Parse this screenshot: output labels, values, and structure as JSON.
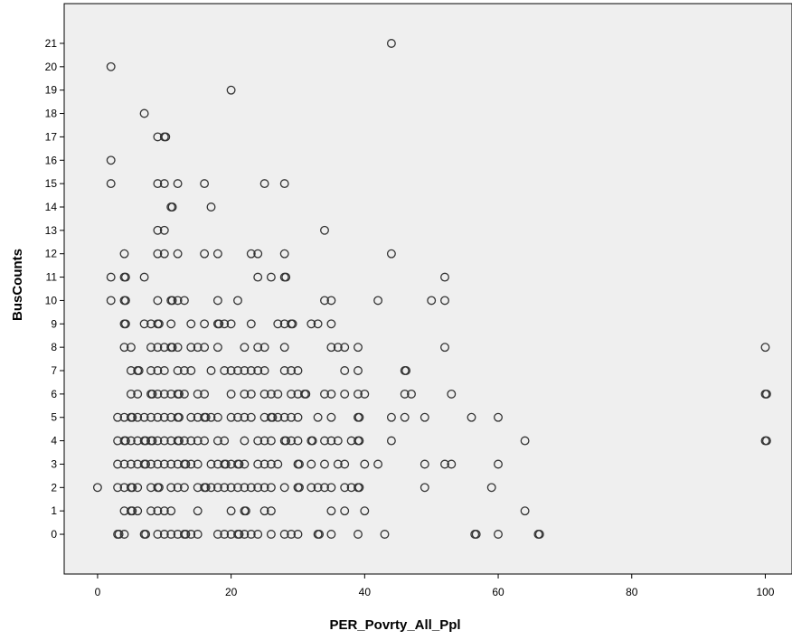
{
  "chart_data": {
    "type": "scatter",
    "xlabel": "PER_Povrty_All_Ppl",
    "ylabel": "BusCounts",
    "xlim": [
      -5,
      104
    ],
    "ylim": [
      -1.7,
      22.7
    ],
    "x_ticks": [
      0,
      20,
      40,
      60,
      80,
      100
    ],
    "y_ticks": [
      0,
      1,
      2,
      3,
      4,
      5,
      6,
      7,
      8,
      9,
      10,
      11,
      12,
      13,
      14,
      15,
      16,
      17,
      18,
      19,
      20,
      21
    ],
    "grid": false,
    "legend": "none",
    "colors": {
      "plot_bg": "#efefef",
      "marker_stroke": "#333333",
      "axis": "#000000"
    },
    "points": [
      [
        44,
        21
      ],
      [
        2,
        20
      ],
      [
        20,
        19
      ],
      [
        7,
        18
      ],
      [
        9,
        17
      ],
      [
        10,
        17
      ],
      [
        10.2,
        17
      ],
      [
        2,
        16
      ],
      [
        2,
        15
      ],
      [
        9,
        15
      ],
      [
        10,
        15
      ],
      [
        12,
        15
      ],
      [
        16,
        15
      ],
      [
        25,
        15
      ],
      [
        28,
        15
      ],
      [
        11,
        14
      ],
      [
        11.2,
        14
      ],
      [
        17,
        14
      ],
      [
        9,
        13
      ],
      [
        10,
        13
      ],
      [
        34,
        13
      ],
      [
        4,
        12
      ],
      [
        9,
        12
      ],
      [
        10,
        12
      ],
      [
        12,
        12
      ],
      [
        16,
        12
      ],
      [
        18,
        12
      ],
      [
        23,
        12
      ],
      [
        24,
        12
      ],
      [
        28,
        12
      ],
      [
        44,
        12
      ],
      [
        2,
        11
      ],
      [
        4,
        11
      ],
      [
        4.2,
        11
      ],
      [
        7,
        11
      ],
      [
        24,
        11
      ],
      [
        26,
        11
      ],
      [
        28,
        11
      ],
      [
        28.2,
        11
      ],
      [
        52,
        11
      ],
      [
        2,
        10
      ],
      [
        4,
        10
      ],
      [
        4.2,
        10
      ],
      [
        9,
        10
      ],
      [
        11,
        10
      ],
      [
        11.2,
        10
      ],
      [
        12,
        10
      ],
      [
        13,
        10
      ],
      [
        18,
        10
      ],
      [
        21,
        10
      ],
      [
        34,
        10
      ],
      [
        35,
        10
      ],
      [
        42,
        10
      ],
      [
        50,
        10
      ],
      [
        52,
        10
      ],
      [
        4,
        9
      ],
      [
        4.2,
        9
      ],
      [
        7,
        9
      ],
      [
        8,
        9
      ],
      [
        9,
        9
      ],
      [
        9.2,
        9
      ],
      [
        11,
        9
      ],
      [
        14,
        9
      ],
      [
        16,
        9
      ],
      [
        18,
        9
      ],
      [
        18.2,
        9
      ],
      [
        19,
        9
      ],
      [
        20,
        9
      ],
      [
        23,
        9
      ],
      [
        27,
        9
      ],
      [
        28,
        9
      ],
      [
        29,
        9
      ],
      [
        29.2,
        9
      ],
      [
        32,
        9
      ],
      [
        33,
        9
      ],
      [
        35,
        9
      ],
      [
        4,
        8
      ],
      [
        5,
        8
      ],
      [
        8,
        8
      ],
      [
        9,
        8
      ],
      [
        10,
        8
      ],
      [
        11,
        8
      ],
      [
        11.2,
        8
      ],
      [
        12,
        8
      ],
      [
        14,
        8
      ],
      [
        15,
        8
      ],
      [
        16,
        8
      ],
      [
        18,
        8
      ],
      [
        22,
        8
      ],
      [
        24,
        8
      ],
      [
        25,
        8
      ],
      [
        28,
        8
      ],
      [
        35,
        8
      ],
      [
        36,
        8
      ],
      [
        37,
        8
      ],
      [
        39,
        8
      ],
      [
        52,
        8
      ],
      [
        100,
        8
      ],
      [
        5,
        7
      ],
      [
        6,
        7
      ],
      [
        6.2,
        7
      ],
      [
        8,
        7
      ],
      [
        9,
        7
      ],
      [
        10,
        7
      ],
      [
        12,
        7
      ],
      [
        13,
        7
      ],
      [
        14,
        7
      ],
      [
        17,
        7
      ],
      [
        19,
        7
      ],
      [
        20,
        7
      ],
      [
        21,
        7
      ],
      [
        22,
        7
      ],
      [
        23,
        7
      ],
      [
        24,
        7
      ],
      [
        25,
        7
      ],
      [
        28,
        7
      ],
      [
        29,
        7
      ],
      [
        30,
        7
      ],
      [
        37,
        7
      ],
      [
        39,
        7
      ],
      [
        46,
        7
      ],
      [
        46.2,
        7
      ],
      [
        5,
        6
      ],
      [
        6,
        6
      ],
      [
        8,
        6
      ],
      [
        8.2,
        6
      ],
      [
        9,
        6
      ],
      [
        10,
        6
      ],
      [
        11,
        6
      ],
      [
        12,
        6
      ],
      [
        12.2,
        6
      ],
      [
        13,
        6
      ],
      [
        15,
        6
      ],
      [
        16,
        6
      ],
      [
        20,
        6
      ],
      [
        22,
        6
      ],
      [
        23,
        6
      ],
      [
        25,
        6
      ],
      [
        26,
        6
      ],
      [
        27,
        6
      ],
      [
        29,
        6
      ],
      [
        30,
        6
      ],
      [
        31,
        6
      ],
      [
        31.2,
        6
      ],
      [
        34,
        6
      ],
      [
        35,
        6
      ],
      [
        37,
        6
      ],
      [
        39,
        6
      ],
      [
        40,
        6
      ],
      [
        46,
        6
      ],
      [
        47,
        6
      ],
      [
        53,
        6
      ],
      [
        100,
        6
      ],
      [
        100.2,
        6
      ],
      [
        3,
        5
      ],
      [
        4,
        5
      ],
      [
        5,
        5
      ],
      [
        5.2,
        5
      ],
      [
        6,
        5
      ],
      [
        7,
        5
      ],
      [
        8,
        5
      ],
      [
        9,
        5
      ],
      [
        10,
        5
      ],
      [
        11,
        5
      ],
      [
        12,
        5
      ],
      [
        12.2,
        5
      ],
      [
        14,
        5
      ],
      [
        15,
        5
      ],
      [
        16,
        5
      ],
      [
        16.2,
        5
      ],
      [
        17,
        5
      ],
      [
        18,
        5
      ],
      [
        20,
        5
      ],
      [
        21,
        5
      ],
      [
        22,
        5
      ],
      [
        23,
        5
      ],
      [
        25,
        5
      ],
      [
        26,
        5
      ],
      [
        26.2,
        5
      ],
      [
        27,
        5
      ],
      [
        28,
        5
      ],
      [
        29,
        5
      ],
      [
        30,
        5
      ],
      [
        33,
        5
      ],
      [
        35,
        5
      ],
      [
        39,
        5
      ],
      [
        39.2,
        5
      ],
      [
        44,
        5
      ],
      [
        46,
        5
      ],
      [
        49,
        5
      ],
      [
        56,
        5
      ],
      [
        60,
        5
      ],
      [
        3,
        4
      ],
      [
        4,
        4
      ],
      [
        4.2,
        4
      ],
      [
        5,
        4
      ],
      [
        6,
        4
      ],
      [
        7,
        4
      ],
      [
        7.2,
        4
      ],
      [
        8,
        4
      ],
      [
        8.2,
        4
      ],
      [
        9,
        4
      ],
      [
        10,
        4
      ],
      [
        11,
        4
      ],
      [
        12,
        4
      ],
      [
        12.2,
        4
      ],
      [
        13,
        4
      ],
      [
        14,
        4
      ],
      [
        15,
        4
      ],
      [
        16,
        4
      ],
      [
        18,
        4
      ],
      [
        19,
        4
      ],
      [
        22,
        4
      ],
      [
        24,
        4
      ],
      [
        25,
        4
      ],
      [
        26,
        4
      ],
      [
        28,
        4
      ],
      [
        28.2,
        4
      ],
      [
        29,
        4
      ],
      [
        30,
        4
      ],
      [
        32,
        4
      ],
      [
        32.2,
        4
      ],
      [
        34,
        4
      ],
      [
        35,
        4
      ],
      [
        36,
        4
      ],
      [
        38,
        4
      ],
      [
        39,
        4
      ],
      [
        39.2,
        4
      ],
      [
        44,
        4
      ],
      [
        64,
        4
      ],
      [
        100,
        4
      ],
      [
        100.2,
        4
      ],
      [
        3,
        3
      ],
      [
        4,
        3
      ],
      [
        5,
        3
      ],
      [
        6,
        3
      ],
      [
        7,
        3
      ],
      [
        7.2,
        3
      ],
      [
        8,
        3
      ],
      [
        9,
        3
      ],
      [
        10,
        3
      ],
      [
        11,
        3
      ],
      [
        12,
        3
      ],
      [
        13,
        3
      ],
      [
        13.2,
        3
      ],
      [
        14,
        3
      ],
      [
        15,
        3
      ],
      [
        17,
        3
      ],
      [
        18,
        3
      ],
      [
        19,
        3
      ],
      [
        19.2,
        3
      ],
      [
        20,
        3
      ],
      [
        21,
        3
      ],
      [
        21.2,
        3
      ],
      [
        22,
        3
      ],
      [
        24,
        3
      ],
      [
        25,
        3
      ],
      [
        26,
        3
      ],
      [
        27,
        3
      ],
      [
        30,
        3
      ],
      [
        30.2,
        3
      ],
      [
        32,
        3
      ],
      [
        34,
        3
      ],
      [
        36,
        3
      ],
      [
        37,
        3
      ],
      [
        40,
        3
      ],
      [
        42,
        3
      ],
      [
        49,
        3
      ],
      [
        52,
        3
      ],
      [
        53,
        3
      ],
      [
        60,
        3
      ],
      [
        0,
        2
      ],
      [
        3,
        2
      ],
      [
        4,
        2
      ],
      [
        5,
        2
      ],
      [
        5.2,
        2
      ],
      [
        6,
        2
      ],
      [
        8,
        2
      ],
      [
        9,
        2
      ],
      [
        9.2,
        2
      ],
      [
        11,
        2
      ],
      [
        12,
        2
      ],
      [
        13,
        2
      ],
      [
        15,
        2
      ],
      [
        16,
        2
      ],
      [
        16.2,
        2
      ],
      [
        17,
        2
      ],
      [
        18,
        2
      ],
      [
        19,
        2
      ],
      [
        20,
        2
      ],
      [
        21,
        2
      ],
      [
        22,
        2
      ],
      [
        23,
        2
      ],
      [
        24,
        2
      ],
      [
        25,
        2
      ],
      [
        26,
        2
      ],
      [
        28,
        2
      ],
      [
        30,
        2
      ],
      [
        30.2,
        2
      ],
      [
        32,
        2
      ],
      [
        33,
        2
      ],
      [
        34,
        2
      ],
      [
        35,
        2
      ],
      [
        37,
        2
      ],
      [
        38,
        2
      ],
      [
        39,
        2
      ],
      [
        39.2,
        2
      ],
      [
        49,
        2
      ],
      [
        59,
        2
      ],
      [
        4,
        1
      ],
      [
        5,
        1
      ],
      [
        5.2,
        1
      ],
      [
        6,
        1
      ],
      [
        8,
        1
      ],
      [
        9,
        1
      ],
      [
        10,
        1
      ],
      [
        11,
        1
      ],
      [
        15,
        1
      ],
      [
        20,
        1
      ],
      [
        22,
        1
      ],
      [
        22.2,
        1
      ],
      [
        25,
        1
      ],
      [
        26,
        1
      ],
      [
        35,
        1
      ],
      [
        37,
        1
      ],
      [
        40,
        1
      ],
      [
        64,
        1
      ],
      [
        3,
        0
      ],
      [
        3.2,
        0
      ],
      [
        4,
        0
      ],
      [
        7,
        0
      ],
      [
        7.2,
        0
      ],
      [
        9,
        0
      ],
      [
        10,
        0
      ],
      [
        11,
        0
      ],
      [
        12,
        0
      ],
      [
        13,
        0
      ],
      [
        13.2,
        0
      ],
      [
        14,
        0
      ],
      [
        15,
        0
      ],
      [
        18,
        0
      ],
      [
        19,
        0
      ],
      [
        20,
        0
      ],
      [
        21,
        0
      ],
      [
        21.2,
        0
      ],
      [
        22,
        0
      ],
      [
        23,
        0
      ],
      [
        24,
        0
      ],
      [
        26,
        0
      ],
      [
        28,
        0
      ],
      [
        29,
        0
      ],
      [
        30,
        0
      ],
      [
        33,
        0
      ],
      [
        33.2,
        0
      ],
      [
        35,
        0
      ],
      [
        39,
        0
      ],
      [
        43,
        0
      ],
      [
        56.5,
        0
      ],
      [
        56.7,
        0
      ],
      [
        60,
        0
      ],
      [
        66,
        0
      ],
      [
        66.2,
        0
      ]
    ]
  }
}
